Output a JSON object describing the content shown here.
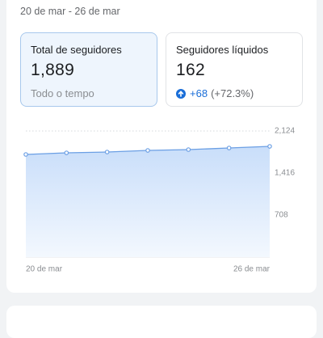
{
  "header": {
    "date_range": "20 de mar - 26 de mar"
  },
  "cards": [
    {
      "label": "Total de seguidores",
      "value": "1,889",
      "note": "Todo o tempo"
    },
    {
      "label": "Seguidores líquidos",
      "value": "162",
      "change": "+68",
      "change_pct": "(+72.3%)"
    }
  ],
  "chart_data": {
    "type": "line",
    "categories": [
      "20 de mar",
      null,
      null,
      null,
      null,
      null,
      "26 de mar"
    ],
    "series": [
      {
        "color": "#6b9fe4",
        "values": [
          1729,
          1756,
          1770,
          1797,
          1811,
          1838,
          1865
        ]
      }
    ],
    "ylim": [
      0,
      2124
    ],
    "yticks": [
      {
        "value": 708,
        "label": "708"
      },
      {
        "value": 1416,
        "label": "1,416"
      },
      {
        "value": 2124,
        "label": "2,124"
      }
    ],
    "grid": true
  }
}
